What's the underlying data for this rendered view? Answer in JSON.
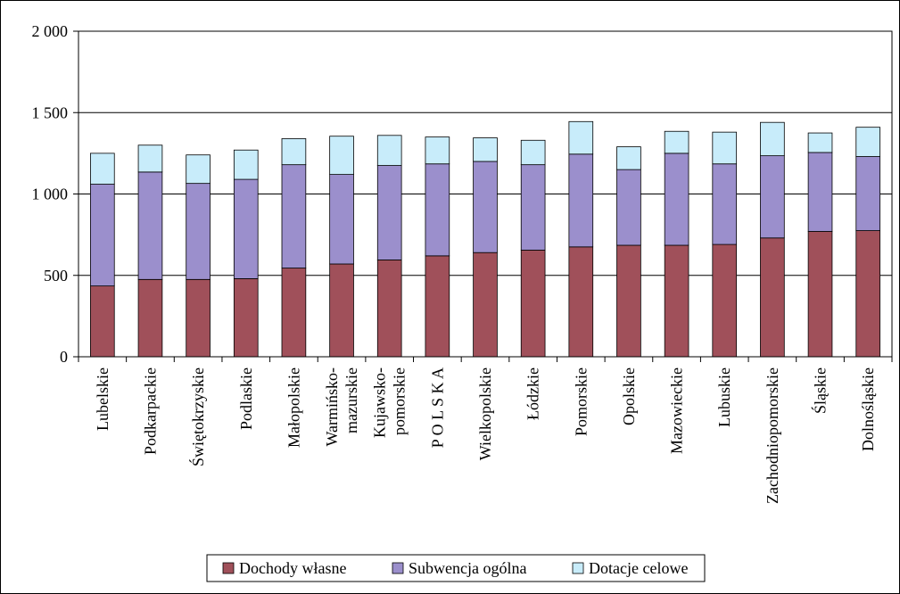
{
  "chart_data": {
    "type": "bar",
    "stacked": true,
    "categories": [
      "Lubelskie",
      "Podkarpackie",
      "Świętokrzyskie",
      "Podlaskie",
      "Małopolskie",
      "Warmińsko-\nmazurskie",
      "Kujawsko-\npomorskie",
      "P O L S K A",
      "Wielkopolskie",
      "Łódzkie",
      "Pomorskie",
      "Opolskie",
      "Mazowieckie",
      "Lubuskie",
      "Zachodniopomorskie",
      "Śląskie",
      "Dolnośląskie"
    ],
    "series": [
      {
        "name": "Dochody własne",
        "color": "#a0505a",
        "values": [
          435,
          475,
          475,
          480,
          545,
          570,
          595,
          620,
          640,
          655,
          675,
          685,
          685,
          690,
          730,
          770,
          775
        ]
      },
      {
        "name": "Subwencja ogólna",
        "color": "#9b8fcc",
        "values": [
          625,
          660,
          590,
          610,
          635,
          550,
          580,
          565,
          560,
          525,
          570,
          465,
          565,
          495,
          505,
          485,
          455
        ]
      },
      {
        "name": "Dotacje celowe",
        "color": "#c8ecfa",
        "values": [
          190,
          165,
          175,
          180,
          160,
          235,
          185,
          165,
          145,
          150,
          200,
          140,
          135,
          195,
          205,
          120,
          180
        ]
      }
    ],
    "ylim": [
      0,
      2000
    ],
    "yticks": [
      {
        "value": 0,
        "label": "0"
      },
      {
        "value": 500,
        "label": "500"
      },
      {
        "value": 1000,
        "label": "1 000"
      },
      {
        "value": 1500,
        "label": "1 500"
      },
      {
        "value": 2000,
        "label": "2 000"
      }
    ],
    "grid": true,
    "legend_position": "bottom"
  }
}
